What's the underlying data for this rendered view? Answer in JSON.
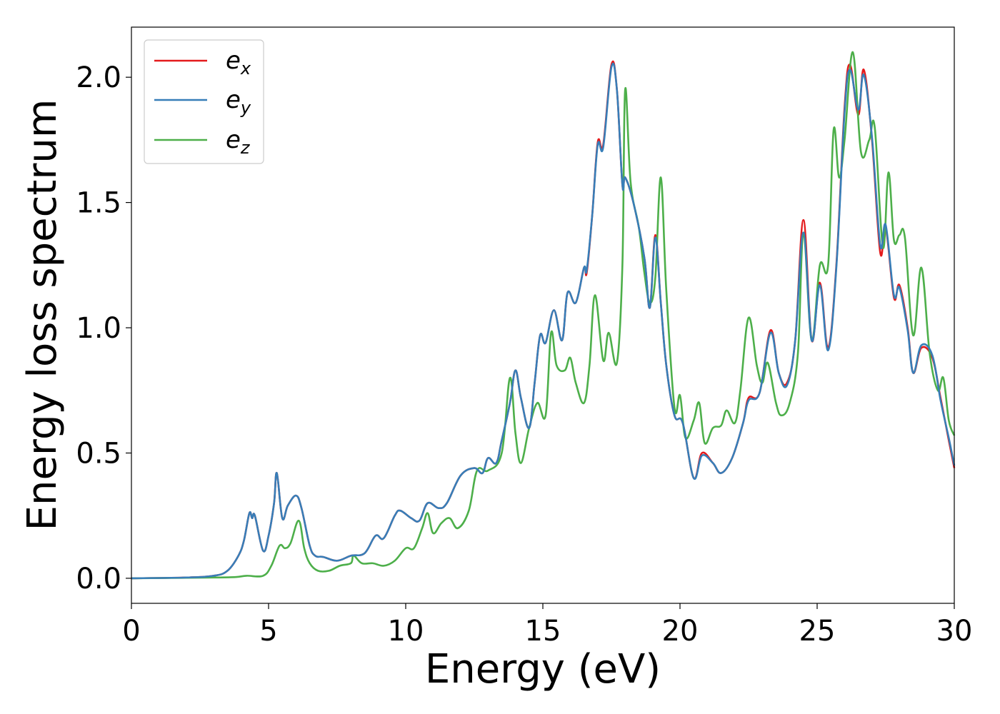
{
  "chart_data": {
    "type": "line",
    "title": "",
    "xlabel": "Energy (eV)",
    "ylabel": "Energy loss spectrum",
    "xlim": [
      0,
      30
    ],
    "ylim": [
      -0.1,
      2.2
    ],
    "xticks": [
      0,
      5,
      10,
      15,
      20,
      25,
      30
    ],
    "xtick_labels": [
      "0",
      "5",
      "10",
      "15",
      "20",
      "25",
      "30"
    ],
    "yticks": [
      0.0,
      0.5,
      1.0,
      1.5,
      2.0
    ],
    "ytick_labels": [
      "0.0",
      "0.5",
      "1.0",
      "1.5",
      "2.0"
    ],
    "grid": false,
    "legend_position": "top-left",
    "series": [
      {
        "name": "e_x",
        "legend_base": "e",
        "legend_sub": "x",
        "color": "#e41a1c",
        "points": [
          [
            0,
            0
          ],
          [
            2,
            0.003
          ],
          [
            3,
            0.01
          ],
          [
            3.5,
            0.03
          ],
          [
            3.9,
            0.09
          ],
          [
            4.1,
            0.15
          ],
          [
            4.3,
            0.26
          ],
          [
            4.4,
            0.24
          ],
          [
            4.5,
            0.25
          ],
          [
            4.8,
            0.11
          ],
          [
            5.0,
            0.17
          ],
          [
            5.2,
            0.3
          ],
          [
            5.3,
            0.42
          ],
          [
            5.5,
            0.24
          ],
          [
            5.7,
            0.29
          ],
          [
            6.0,
            0.33
          ],
          [
            6.2,
            0.28
          ],
          [
            6.5,
            0.13
          ],
          [
            6.7,
            0.09
          ],
          [
            7.0,
            0.085
          ],
          [
            7.5,
            0.07
          ],
          [
            8.0,
            0.09
          ],
          [
            8.5,
            0.1
          ],
          [
            8.9,
            0.17
          ],
          [
            9.2,
            0.16
          ],
          [
            9.6,
            0.25
          ],
          [
            9.8,
            0.27
          ],
          [
            10.2,
            0.24
          ],
          [
            10.5,
            0.23
          ],
          [
            10.8,
            0.3
          ],
          [
            11.2,
            0.28
          ],
          [
            11.5,
            0.3
          ],
          [
            12.0,
            0.41
          ],
          [
            12.5,
            0.44
          ],
          [
            12.8,
            0.42
          ],
          [
            13.0,
            0.48
          ],
          [
            13.3,
            0.46
          ],
          [
            13.5,
            0.55
          ],
          [
            13.8,
            0.7
          ],
          [
            14.0,
            0.83
          ],
          [
            14.2,
            0.72
          ],
          [
            14.5,
            0.6
          ],
          [
            14.7,
            0.78
          ],
          [
            14.9,
            0.97
          ],
          [
            15.1,
            0.94
          ],
          [
            15.4,
            1.07
          ],
          [
            15.7,
            0.95
          ],
          [
            15.9,
            1.14
          ],
          [
            16.2,
            1.1
          ],
          [
            16.5,
            1.24
          ],
          [
            16.6,
            1.22
          ],
          [
            16.8,
            1.45
          ],
          [
            17.0,
            1.74
          ],
          [
            17.2,
            1.73
          ],
          [
            17.5,
            2.05
          ],
          [
            17.7,
            1.95
          ],
          [
            17.9,
            1.57
          ],
          [
            18.0,
            1.6
          ],
          [
            18.3,
            1.5
          ],
          [
            18.7,
            1.28
          ],
          [
            18.9,
            1.08
          ],
          [
            19.1,
            1.37
          ],
          [
            19.3,
            1.1
          ],
          [
            19.5,
            0.85
          ],
          [
            19.8,
            0.65
          ],
          [
            20.1,
            0.62
          ],
          [
            20.5,
            0.4
          ],
          [
            20.8,
            0.5
          ],
          [
            21.2,
            0.46
          ],
          [
            21.5,
            0.42
          ],
          [
            21.9,
            0.48
          ],
          [
            22.3,
            0.62
          ],
          [
            22.5,
            0.72
          ],
          [
            22.9,
            0.74
          ],
          [
            23.3,
            0.99
          ],
          [
            23.6,
            0.82
          ],
          [
            23.9,
            0.78
          ],
          [
            24.2,
            0.95
          ],
          [
            24.5,
            1.43
          ],
          [
            24.8,
            0.95
          ],
          [
            25.1,
            1.18
          ],
          [
            25.4,
            0.92
          ],
          [
            25.7,
            1.25
          ],
          [
            26.0,
            1.88
          ],
          [
            26.2,
            2.05
          ],
          [
            26.5,
            1.85
          ],
          [
            26.7,
            2.03
          ],
          [
            27.0,
            1.75
          ],
          [
            27.3,
            1.3
          ],
          [
            27.5,
            1.4
          ],
          [
            27.8,
            1.12
          ],
          [
            28.0,
            1.17
          ],
          [
            28.3,
            1.0
          ],
          [
            28.5,
            0.82
          ],
          [
            28.8,
            0.92
          ],
          [
            29.2,
            0.88
          ],
          [
            29.5,
            0.72
          ],
          [
            29.8,
            0.55
          ],
          [
            30.0,
            0.44
          ]
        ]
      },
      {
        "name": "e_y",
        "legend_base": "e",
        "legend_sub": "y",
        "color": "#377eb8",
        "points": [
          [
            0,
            0
          ],
          [
            2,
            0.003
          ],
          [
            3,
            0.01
          ],
          [
            3.5,
            0.03
          ],
          [
            3.9,
            0.09
          ],
          [
            4.1,
            0.15
          ],
          [
            4.3,
            0.26
          ],
          [
            4.4,
            0.24
          ],
          [
            4.5,
            0.25
          ],
          [
            4.8,
            0.11
          ],
          [
            5.0,
            0.17
          ],
          [
            5.2,
            0.3
          ],
          [
            5.3,
            0.42
          ],
          [
            5.5,
            0.24
          ],
          [
            5.7,
            0.29
          ],
          [
            6.0,
            0.33
          ],
          [
            6.2,
            0.28
          ],
          [
            6.5,
            0.13
          ],
          [
            6.7,
            0.09
          ],
          [
            7.0,
            0.085
          ],
          [
            7.5,
            0.07
          ],
          [
            8.0,
            0.09
          ],
          [
            8.5,
            0.1
          ],
          [
            8.9,
            0.17
          ],
          [
            9.2,
            0.16
          ],
          [
            9.6,
            0.25
          ],
          [
            9.8,
            0.27
          ],
          [
            10.2,
            0.24
          ],
          [
            10.5,
            0.23
          ],
          [
            10.8,
            0.3
          ],
          [
            11.2,
            0.28
          ],
          [
            11.5,
            0.3
          ],
          [
            12.0,
            0.41
          ],
          [
            12.5,
            0.44
          ],
          [
            12.8,
            0.42
          ],
          [
            13.0,
            0.48
          ],
          [
            13.3,
            0.46
          ],
          [
            13.5,
            0.55
          ],
          [
            13.8,
            0.7
          ],
          [
            14.0,
            0.83
          ],
          [
            14.2,
            0.72
          ],
          [
            14.5,
            0.6
          ],
          [
            14.7,
            0.78
          ],
          [
            14.9,
            0.97
          ],
          [
            15.1,
            0.94
          ],
          [
            15.4,
            1.07
          ],
          [
            15.7,
            0.95
          ],
          [
            15.9,
            1.14
          ],
          [
            16.2,
            1.1
          ],
          [
            16.5,
            1.24
          ],
          [
            16.6,
            1.23
          ],
          [
            16.8,
            1.45
          ],
          [
            17.0,
            1.73
          ],
          [
            17.2,
            1.72
          ],
          [
            17.5,
            2.04
          ],
          [
            17.7,
            1.95
          ],
          [
            17.9,
            1.57
          ],
          [
            18.0,
            1.6
          ],
          [
            18.3,
            1.5
          ],
          [
            18.7,
            1.28
          ],
          [
            18.9,
            1.08
          ],
          [
            19.1,
            1.36
          ],
          [
            19.3,
            1.1
          ],
          [
            19.5,
            0.85
          ],
          [
            19.8,
            0.65
          ],
          [
            20.1,
            0.62
          ],
          [
            20.5,
            0.4
          ],
          [
            20.8,
            0.49
          ],
          [
            21.2,
            0.46
          ],
          [
            21.5,
            0.42
          ],
          [
            21.9,
            0.48
          ],
          [
            22.3,
            0.62
          ],
          [
            22.5,
            0.71
          ],
          [
            22.9,
            0.74
          ],
          [
            23.3,
            0.98
          ],
          [
            23.6,
            0.82
          ],
          [
            23.9,
            0.77
          ],
          [
            24.2,
            0.95
          ],
          [
            24.5,
            1.38
          ],
          [
            24.8,
            0.95
          ],
          [
            25.1,
            1.17
          ],
          [
            25.4,
            0.91
          ],
          [
            25.7,
            1.24
          ],
          [
            26.0,
            1.86
          ],
          [
            26.2,
            2.03
          ],
          [
            26.5,
            1.87
          ],
          [
            26.7,
            2.01
          ],
          [
            27.0,
            1.76
          ],
          [
            27.3,
            1.33
          ],
          [
            27.5,
            1.41
          ],
          [
            27.8,
            1.13
          ],
          [
            28.0,
            1.16
          ],
          [
            28.3,
            0.99
          ],
          [
            28.5,
            0.82
          ],
          [
            28.8,
            0.93
          ],
          [
            29.2,
            0.89
          ],
          [
            29.5,
            0.71
          ],
          [
            29.8,
            0.56
          ],
          [
            30.0,
            0.45
          ]
        ]
      },
      {
        "name": "e_z",
        "legend_base": "e",
        "legend_sub": "z",
        "color": "#4daf4a",
        "points": [
          [
            0,
            0
          ],
          [
            2,
            0.002
          ],
          [
            3,
            0.003
          ],
          [
            3.8,
            0.005
          ],
          [
            4.2,
            0.01
          ],
          [
            4.8,
            0.01
          ],
          [
            5.1,
            0.05
          ],
          [
            5.4,
            0.13
          ],
          [
            5.6,
            0.12
          ],
          [
            5.8,
            0.14
          ],
          [
            6.1,
            0.23
          ],
          [
            6.3,
            0.12
          ],
          [
            6.5,
            0.06
          ],
          [
            6.8,
            0.03
          ],
          [
            7.2,
            0.03
          ],
          [
            7.6,
            0.05
          ],
          [
            8.0,
            0.06
          ],
          [
            8.1,
            0.09
          ],
          [
            8.4,
            0.06
          ],
          [
            8.8,
            0.06
          ],
          [
            9.2,
            0.05
          ],
          [
            9.6,
            0.07
          ],
          [
            10.0,
            0.12
          ],
          [
            10.3,
            0.12
          ],
          [
            10.6,
            0.2
          ],
          [
            10.8,
            0.26
          ],
          [
            11.0,
            0.18
          ],
          [
            11.3,
            0.22
          ],
          [
            11.6,
            0.24
          ],
          [
            11.9,
            0.2
          ],
          [
            12.3,
            0.27
          ],
          [
            12.6,
            0.43
          ],
          [
            13.0,
            0.43
          ],
          [
            13.5,
            0.5
          ],
          [
            13.8,
            0.8
          ],
          [
            14.0,
            0.58
          ],
          [
            14.2,
            0.46
          ],
          [
            14.5,
            0.6
          ],
          [
            14.8,
            0.7
          ],
          [
            15.1,
            0.65
          ],
          [
            15.3,
            0.98
          ],
          [
            15.5,
            0.85
          ],
          [
            15.8,
            0.83
          ],
          [
            16.0,
            0.88
          ],
          [
            16.2,
            0.78
          ],
          [
            16.5,
            0.7
          ],
          [
            16.7,
            0.85
          ],
          [
            16.9,
            1.13
          ],
          [
            17.2,
            0.87
          ],
          [
            17.4,
            0.98
          ],
          [
            17.7,
            0.86
          ],
          [
            17.9,
            1.25
          ],
          [
            18.0,
            1.95
          ],
          [
            18.2,
            1.58
          ],
          [
            18.5,
            1.4
          ],
          [
            18.7,
            1.22
          ],
          [
            18.9,
            1.1
          ],
          [
            19.1,
            1.2
          ],
          [
            19.3,
            1.6
          ],
          [
            19.5,
            1.15
          ],
          [
            19.8,
            0.68
          ],
          [
            20.0,
            0.73
          ],
          [
            20.2,
            0.56
          ],
          [
            20.5,
            0.63
          ],
          [
            20.7,
            0.7
          ],
          [
            20.9,
            0.54
          ],
          [
            21.2,
            0.6
          ],
          [
            21.5,
            0.61
          ],
          [
            21.7,
            0.67
          ],
          [
            22.0,
            0.62
          ],
          [
            22.2,
            0.75
          ],
          [
            22.5,
            1.04
          ],
          [
            22.8,
            0.85
          ],
          [
            23.0,
            0.78
          ],
          [
            23.2,
            0.86
          ],
          [
            23.5,
            0.7
          ],
          [
            23.7,
            0.65
          ],
          [
            24.0,
            0.7
          ],
          [
            24.3,
            0.9
          ],
          [
            24.5,
            1.38
          ],
          [
            24.8,
            0.95
          ],
          [
            25.1,
            1.25
          ],
          [
            25.4,
            1.25
          ],
          [
            25.6,
            1.79
          ],
          [
            25.8,
            1.6
          ],
          [
            26.0,
            1.75
          ],
          [
            26.3,
            2.1
          ],
          [
            26.6,
            1.7
          ],
          [
            26.9,
            1.75
          ],
          [
            27.1,
            1.8
          ],
          [
            27.4,
            1.32
          ],
          [
            27.6,
            1.62
          ],
          [
            27.8,
            1.35
          ],
          [
            28.0,
            1.37
          ],
          [
            28.2,
            1.36
          ],
          [
            28.5,
            0.97
          ],
          [
            28.8,
            1.24
          ],
          [
            29.1,
            0.9
          ],
          [
            29.4,
            0.75
          ],
          [
            29.6,
            0.8
          ],
          [
            29.8,
            0.63
          ],
          [
            30.0,
            0.57
          ]
        ]
      }
    ]
  }
}
